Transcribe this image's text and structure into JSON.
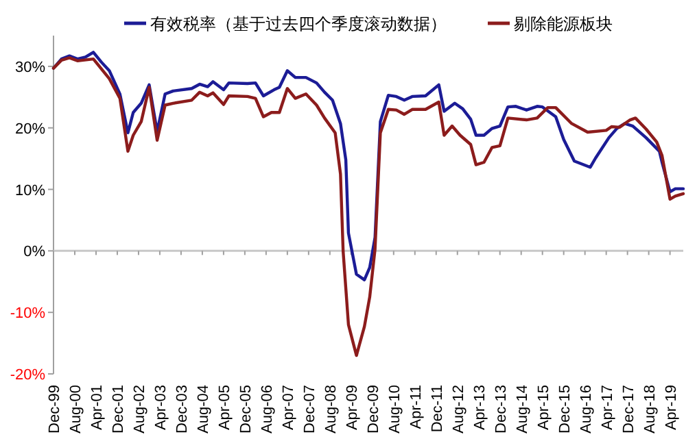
{
  "chart_data": {
    "type": "line",
    "legend": "top",
    "ylim": [
      -20,
      35
    ],
    "xlim": [
      "1999-12",
      "2019-09"
    ],
    "yticks": [
      {
        "value": -20,
        "label": "-20%"
      },
      {
        "value": -10,
        "label": "-10%"
      },
      {
        "value": 0,
        "label": "0%"
      },
      {
        "value": 10,
        "label": "10%"
      },
      {
        "value": 20,
        "label": "20%"
      },
      {
        "value": 30,
        "label": "30%"
      }
    ],
    "xticks": [
      {
        "value": "1999-12",
        "label": "Dec-99"
      },
      {
        "value": "2000-08",
        "label": "Aug-00"
      },
      {
        "value": "2001-04",
        "label": "Apr-01"
      },
      {
        "value": "2001-12",
        "label": "Dec-01"
      },
      {
        "value": "2002-08",
        "label": "Aug-02"
      },
      {
        "value": "2003-04",
        "label": "Apr-03"
      },
      {
        "value": "2003-12",
        "label": "Dec-03"
      },
      {
        "value": "2004-08",
        "label": "Aug-04"
      },
      {
        "value": "2005-04",
        "label": "Apr-05"
      },
      {
        "value": "2005-12",
        "label": "Dec-05"
      },
      {
        "value": "2006-08",
        "label": "Aug-06"
      },
      {
        "value": "2007-04",
        "label": "Apr-07"
      },
      {
        "value": "2007-12",
        "label": "Dec-07"
      },
      {
        "value": "2008-08",
        "label": "Aug-08"
      },
      {
        "value": "2009-04",
        "label": "Apr-09"
      },
      {
        "value": "2009-12",
        "label": "Dec-09"
      },
      {
        "value": "2010-08",
        "label": "Aug-10"
      },
      {
        "value": "2011-04",
        "label": "Apr-11"
      },
      {
        "value": "2011-12",
        "label": "Dec-11"
      },
      {
        "value": "2012-08",
        "label": "Aug-12"
      },
      {
        "value": "2013-04",
        "label": "Apr-13"
      },
      {
        "value": "2013-12",
        "label": "Dec-13"
      },
      {
        "value": "2014-08",
        "label": "Aug-14"
      },
      {
        "value": "2015-04",
        "label": "Apr-15"
      },
      {
        "value": "2015-12",
        "label": "Dec-15"
      },
      {
        "value": "2016-08",
        "label": "Aug-16"
      },
      {
        "value": "2017-04",
        "label": "Apr-17"
      },
      {
        "value": "2017-12",
        "label": "Dec-17"
      },
      {
        "value": "2018-08",
        "label": "Aug-18"
      },
      {
        "value": "2019-04",
        "label": "Apr-19"
      }
    ],
    "series": [
      {
        "name": "有效税率（基于过去四个季度滚动数据）",
        "color": "#1c1c96",
        "x": [
          "1999-12",
          "2000-03",
          "2000-06",
          "2000-09",
          "2000-12",
          "2001-03",
          "2001-06",
          "2001-09",
          "2002-01",
          "2002-04",
          "2002-06",
          "2002-09",
          "2002-12",
          "2003-03",
          "2003-06",
          "2003-09",
          "2004-04",
          "2004-07",
          "2004-10",
          "2004-12",
          "2005-04",
          "2005-06",
          "2006-01",
          "2006-04",
          "2006-07",
          "2006-11",
          "2007-01",
          "2007-04",
          "2007-07",
          "2007-11",
          "2008-03",
          "2008-06",
          "2008-09",
          "2008-12",
          "2009-02",
          "2009-03",
          "2009-06",
          "2009-09",
          "2009-11",
          "2010-01",
          "2010-03",
          "2010-06",
          "2010-09",
          "2010-12",
          "2011-03",
          "2011-08",
          "2012-01",
          "2012-03",
          "2012-07",
          "2012-10",
          "2013-01",
          "2013-03",
          "2013-06",
          "2013-09",
          "2013-12",
          "2014-03",
          "2014-06",
          "2014-10",
          "2015-02",
          "2015-04",
          "2015-09",
          "2015-12",
          "2016-04",
          "2016-10",
          "2016-12",
          "2017-05",
          "2017-08",
          "2017-11",
          "2018-02",
          "2018-07",
          "2018-12",
          "2019-01",
          "2019-04",
          "2019-06",
          "2019-09"
        ],
        "values": [
          29.7,
          31.2,
          31.7,
          31.2,
          31.5,
          32.3,
          30.7,
          29.3,
          25.5,
          19.2,
          22.5,
          24,
          27,
          19.4,
          25.5,
          26,
          26.4,
          27.1,
          26.7,
          27.5,
          26.2,
          27.3,
          27.2,
          27.3,
          25.2,
          26.2,
          26.6,
          29.3,
          28.2,
          28.2,
          27.3,
          25.8,
          24.5,
          20.7,
          14.8,
          2.9,
          -3.8,
          -4.7,
          -2.7,
          2.2,
          21,
          25.3,
          25.1,
          24.5,
          25.1,
          25.2,
          27,
          22.7,
          24,
          23.1,
          21.4,
          18.8,
          18.8,
          19.9,
          20.3,
          23.4,
          23.5,
          22.9,
          23.5,
          23.4,
          21.8,
          18.1,
          14.6,
          13.6,
          15.1,
          18.4,
          19.9,
          20.7,
          20.3,
          18.4,
          16.2,
          14.4,
          9.6,
          10.1,
          10.1
        ]
      },
      {
        "name": "剔除能源板块",
        "color": "#8c1c1c",
        "x": [
          "1999-12",
          "2000-03",
          "2000-06",
          "2000-09",
          "2001-03",
          "2001-09",
          "2002-01",
          "2002-04",
          "2002-06",
          "2002-09",
          "2002-12",
          "2003-03",
          "2003-06",
          "2003-09",
          "2004-04",
          "2004-07",
          "2004-10",
          "2004-12",
          "2005-04",
          "2005-06",
          "2006-01",
          "2006-04",
          "2006-07",
          "2006-10",
          "2007-01",
          "2007-04",
          "2007-07",
          "2007-11",
          "2008-03",
          "2008-06",
          "2008-10",
          "2008-12",
          "2009-01",
          "2009-03",
          "2009-06",
          "2009-09",
          "2009-11",
          "2010-01",
          "2010-03",
          "2010-06",
          "2010-09",
          "2010-12",
          "2011-03",
          "2011-08",
          "2012-01",
          "2012-03",
          "2012-06",
          "2012-09",
          "2013-01",
          "2013-03",
          "2013-06",
          "2013-09",
          "2013-12",
          "2014-03",
          "2014-10",
          "2015-02",
          "2015-06",
          "2015-09",
          "2016-03",
          "2016-09",
          "2017-04",
          "2017-06",
          "2017-09",
          "2018-01",
          "2018-03",
          "2018-07",
          "2018-11",
          "2019-01",
          "2019-04",
          "2019-06",
          "2019-09"
        ],
        "values": [
          29.7,
          31,
          31.4,
          30.9,
          31.2,
          28,
          24.8,
          16.2,
          18.8,
          21,
          26.6,
          18,
          23.7,
          24,
          24.5,
          25.8,
          25.2,
          25.7,
          23.8,
          25.2,
          25.1,
          24.8,
          21.8,
          22.5,
          22.5,
          26.4,
          24.8,
          25.5,
          23.7,
          21.6,
          19.2,
          12.5,
          -0.1,
          -12,
          -17,
          -12.3,
          -7.5,
          0.3,
          19.2,
          23,
          22.9,
          22.2,
          23,
          23,
          24.2,
          18.8,
          20.3,
          18.8,
          17.3,
          14,
          14.4,
          16.8,
          17.1,
          21.6,
          21.3,
          21.6,
          23.3,
          23.3,
          20.7,
          19.3,
          19.6,
          20.2,
          20.1,
          21.3,
          21.6,
          19.8,
          17.7,
          15.5,
          8.4,
          8.9,
          9.3
        ]
      }
    ]
  }
}
